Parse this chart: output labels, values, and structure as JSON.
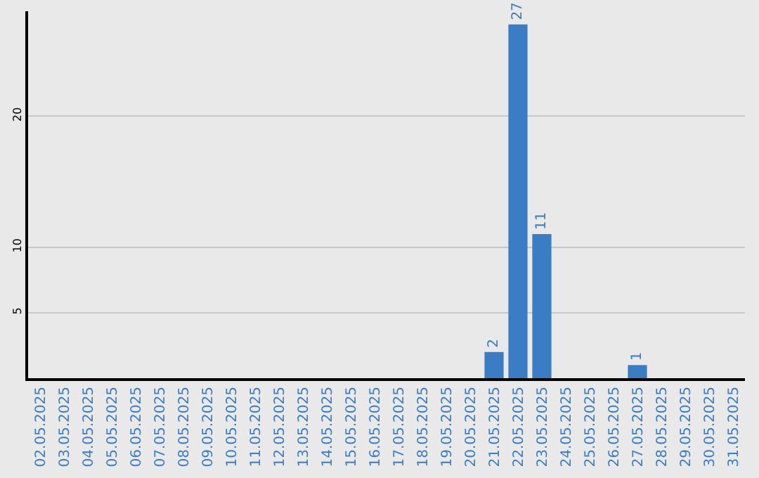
{
  "chart_data": {
    "type": "bar",
    "categories": [
      "02.05.2025",
      "03.05.2025",
      "04.05.2025",
      "05.05.2025",
      "06.05.2025",
      "07.05.2025",
      "08.05.2025",
      "09.05.2025",
      "10.05.2025",
      "11.05.2025",
      "12.05.2025",
      "13.05.2025",
      "14.05.2025",
      "15.05.2025",
      "16.05.2025",
      "17.05.2025",
      "18.05.2025",
      "19.05.2025",
      "20.05.2025",
      "21.05.2025",
      "22.05.2025",
      "23.05.2025",
      "24.05.2025",
      "25.05.2025",
      "26.05.2025",
      "27.05.2025",
      "28.05.2025",
      "29.05.2025",
      "30.05.2025",
      "31.05.2025"
    ],
    "values": [
      0,
      0,
      0,
      0,
      0,
      0,
      0,
      0,
      0,
      0,
      0,
      0,
      0,
      0,
      0,
      0,
      0,
      0,
      0,
      2,
      27,
      11,
      0,
      0,
      0,
      1,
      0,
      0,
      0,
      0
    ],
    "value_labels": [
      null,
      null,
      null,
      null,
      null,
      null,
      null,
      null,
      null,
      null,
      null,
      null,
      null,
      null,
      null,
      null,
      null,
      null,
      null,
      "2",
      "27",
      "11",
      null,
      null,
      null,
      "1",
      null,
      null,
      null,
      null
    ],
    "color": "#3b7dc4",
    "ylim": [
      0,
      28
    ],
    "yticks": [
      5,
      10,
      20
    ],
    "grid": "y",
    "legend": false
  }
}
